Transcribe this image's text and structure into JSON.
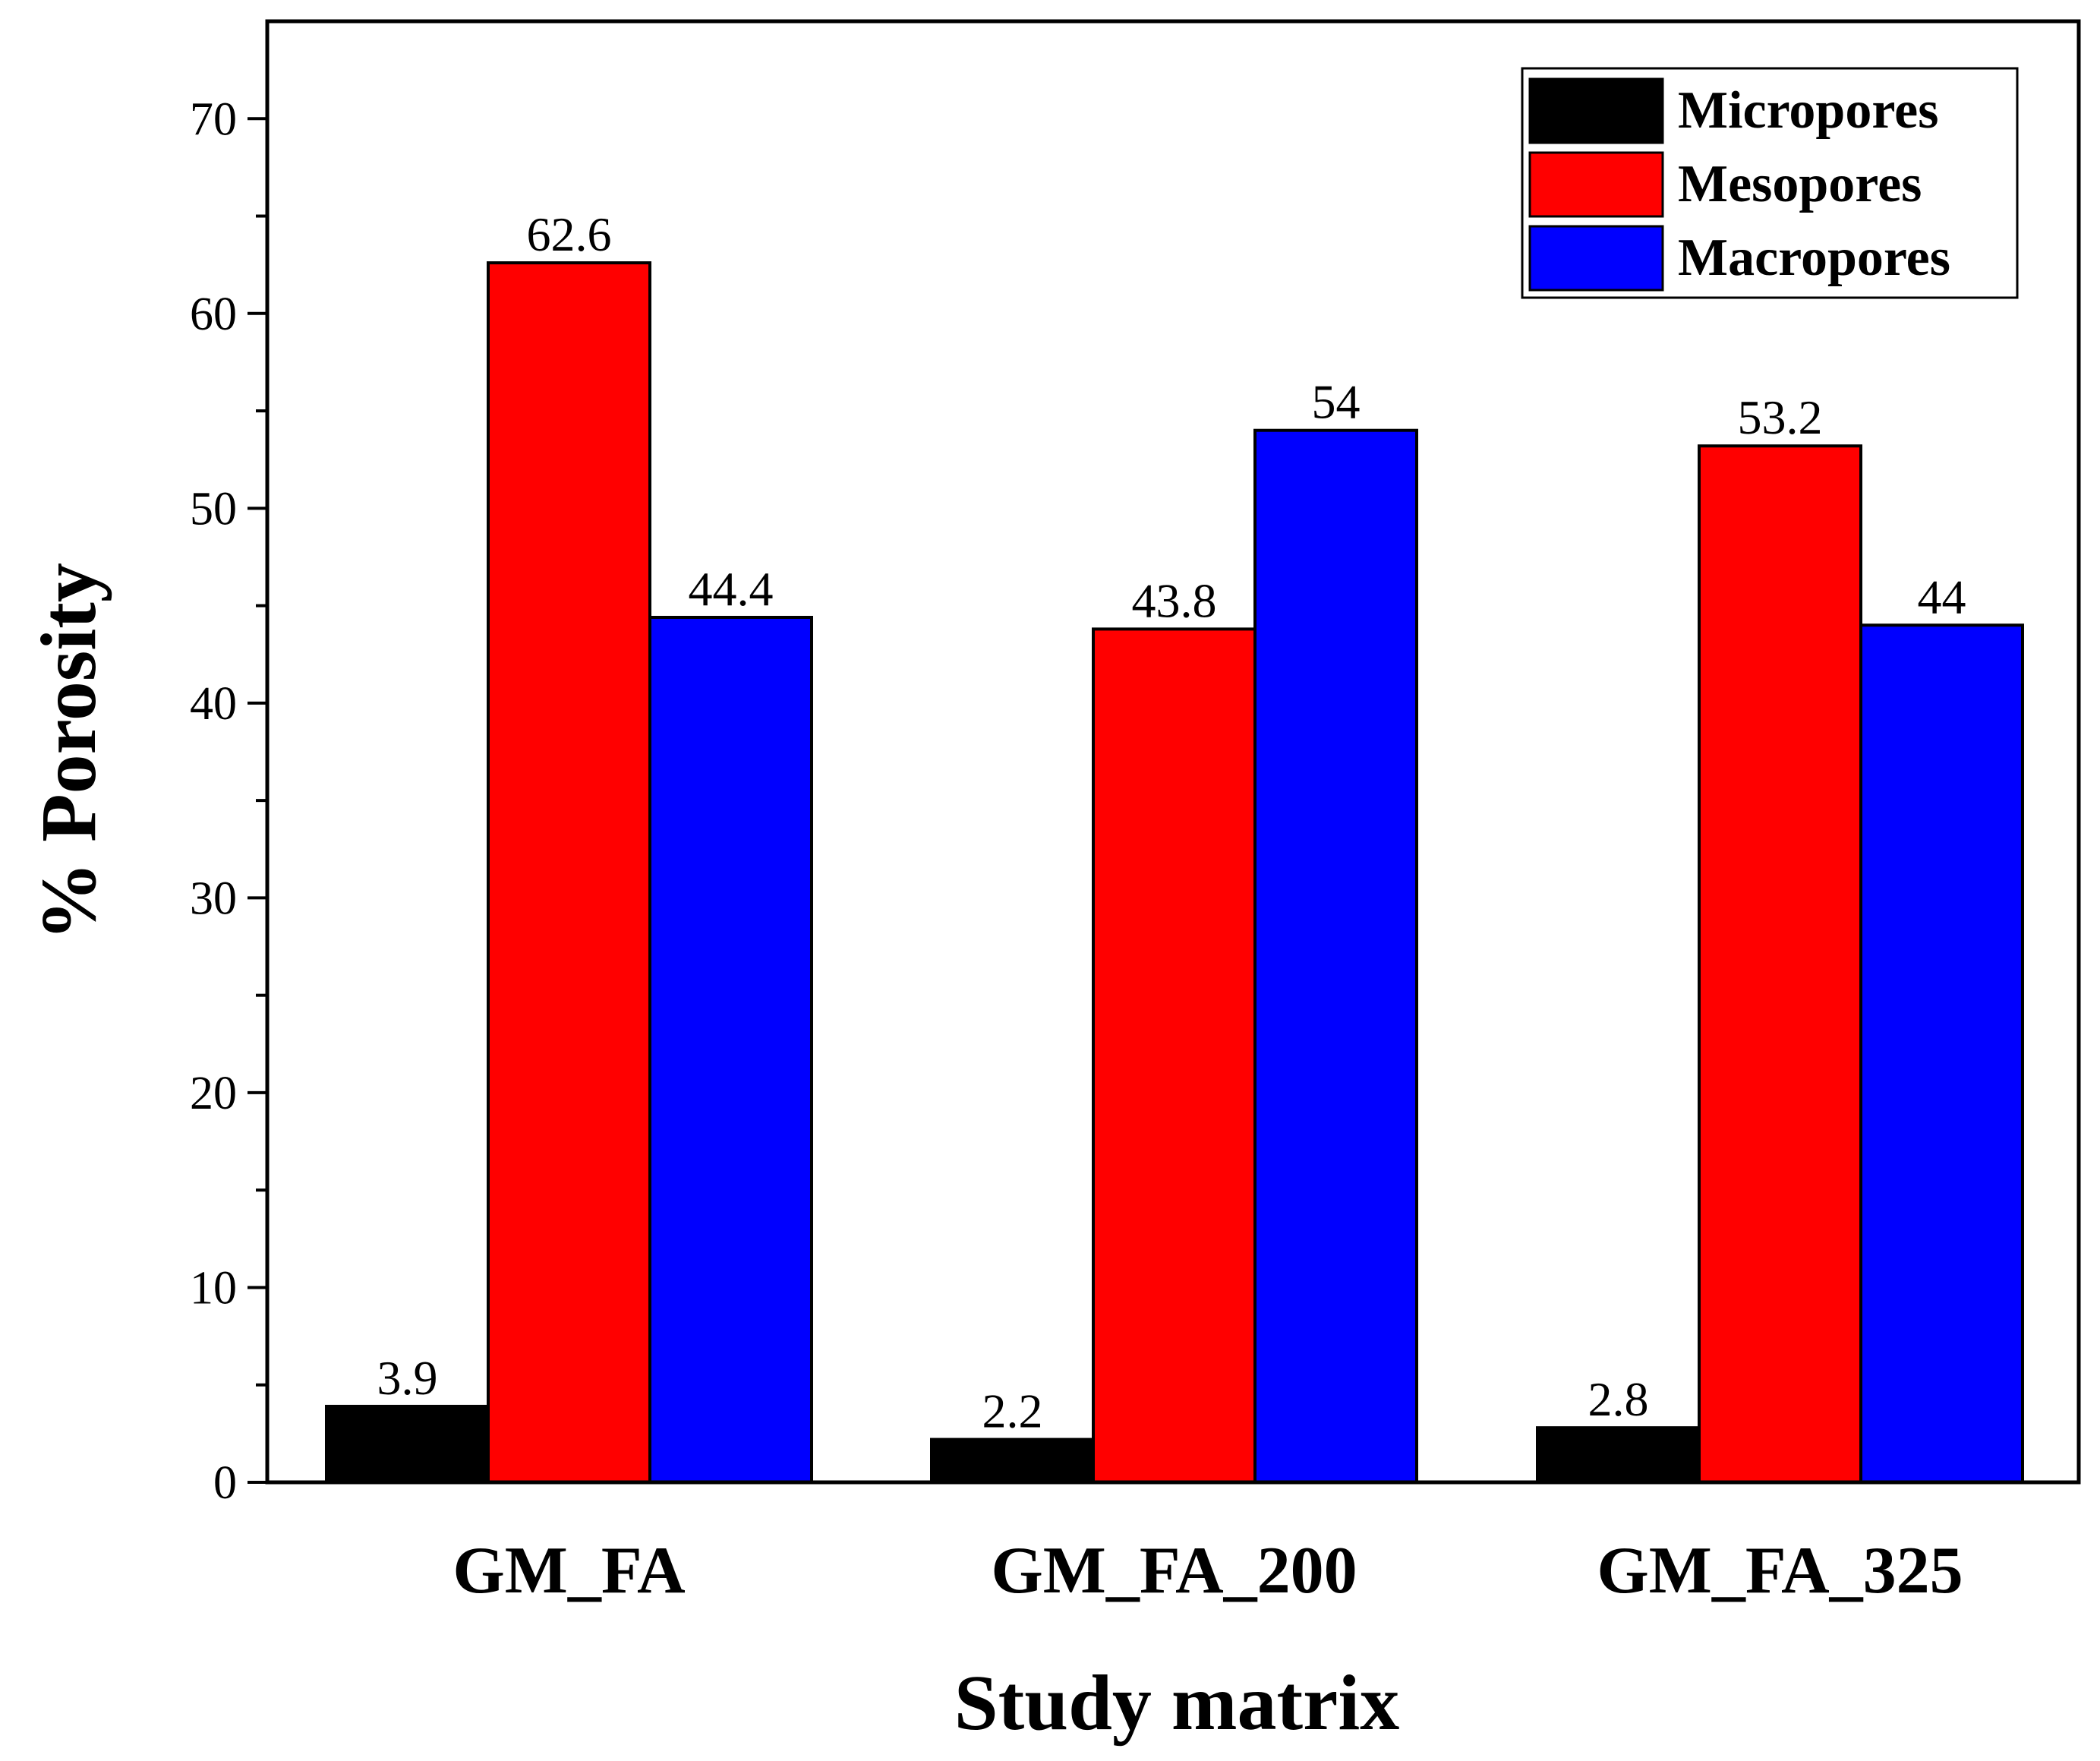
{
  "chart_data": {
    "type": "bar",
    "title": "",
    "xlabel": "Study matrix",
    "ylabel": "% Porosity",
    "categories": [
      "GM_FA",
      "GM_FA_200",
      "GM_FA_325"
    ],
    "series": [
      {
        "name": "Micropores",
        "color": "#000000",
        "values": [
          3.9,
          2.2,
          2.8
        ],
        "labels": [
          "3.9",
          "2.2",
          "2.8"
        ]
      },
      {
        "name": "Mesopores",
        "color": "#ff0000",
        "values": [
          62.6,
          43.8,
          53.2
        ],
        "labels": [
          "62.6",
          "43.8",
          "53.2"
        ]
      },
      {
        "name": "Macropores",
        "color": "#0000ff",
        "values": [
          44.4,
          54,
          44
        ],
        "labels": [
          "44.4",
          "54",
          "44"
        ]
      }
    ],
    "ylim": [
      0,
      75
    ],
    "yticks": [
      0,
      10,
      20,
      30,
      40,
      50,
      60,
      70
    ],
    "ytick_labels": [
      "0",
      "10",
      "20",
      "30",
      "40",
      "50",
      "60",
      "70"
    ],
    "minor_ticks": true,
    "grid": false,
    "legend_position": "top-right"
  }
}
